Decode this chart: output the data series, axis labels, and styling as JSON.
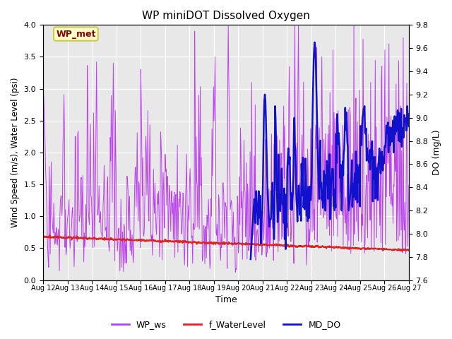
{
  "title": "WP miniDOT Dissolved Oxygen",
  "xlabel": "Time",
  "ylabel_left": "Wind Speed (m/s), Water Level (psi)",
  "ylabel_right": "DO (mg/L)",
  "ylim_left": [
    0.0,
    4.0
  ],
  "ylim_right": [
    7.6,
    9.8
  ],
  "xtick_labels": [
    "Aug 12",
    "Aug 13",
    "Aug 14",
    "Aug 15",
    "Aug 16",
    "Aug 17",
    "Aug 18",
    "Aug 19",
    "Aug 20",
    "Aug 21",
    "Aug 22",
    "Aug 23",
    "Aug 24",
    "Aug 25",
    "Aug 26",
    "Aug 27"
  ],
  "bg_color": "#e8e8e8",
  "fig_bg": "#ffffff",
  "wp_ws_color": "#bb44ee",
  "f_waterlevel_color": "#dd2222",
  "md_do_color": "#1111cc",
  "annotation_text": "WP_met",
  "annotation_bg": "#ffffcc",
  "annotation_edge": "#cccc44",
  "annotation_text_color": "#880000",
  "legend_labels": [
    "WP_ws",
    "f_WaterLevel",
    "MD_DO"
  ],
  "legend_colors": [
    "#bb44ee",
    "#dd2222",
    "#1111cc"
  ],
  "yticks_left": [
    0.0,
    0.5,
    1.0,
    1.5,
    2.0,
    2.5,
    3.0,
    3.5,
    4.0
  ],
  "yticks_right": [
    7.6,
    7.8,
    8.0,
    8.2,
    8.4,
    8.6,
    8.8,
    9.0,
    9.2,
    9.4,
    9.6,
    9.8
  ]
}
